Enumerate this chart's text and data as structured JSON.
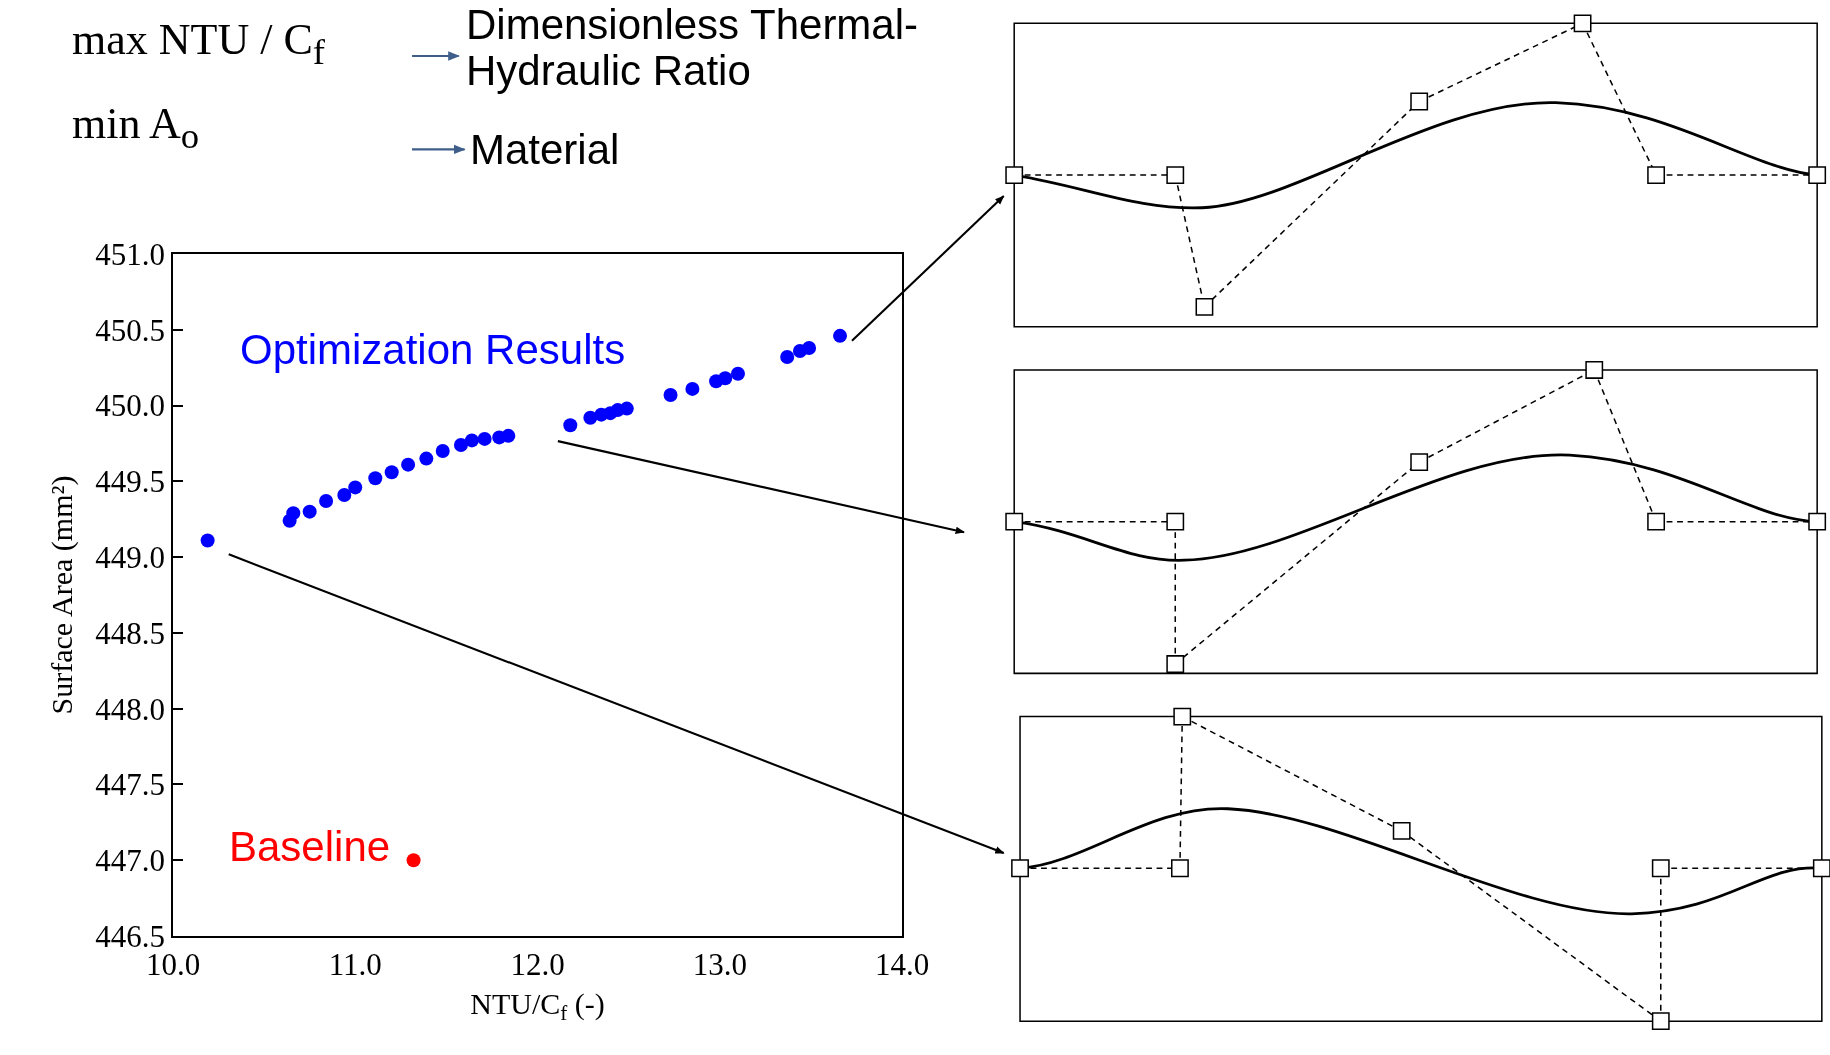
{
  "chart_data": {
    "type": "scatter",
    "xlabel": "NTU/C$_{f}$ (-)",
    "ylabel": "Surface Area (mm²)",
    "xlim": [
      10,
      14
    ],
    "xticks": [
      {
        "value": 10,
        "label": "10.0"
      },
      {
        "value": 11,
        "label": "11.0"
      },
      {
        "value": 12,
        "label": "12.0"
      },
      {
        "value": 13,
        "label": "13.0"
      },
      {
        "value": 14,
        "label": "14.0"
      }
    ],
    "ylim": [
      446.5,
      451
    ],
    "yticks": [
      446.5,
      {
        "value": 447,
        "label": "447.0"
      },
      447.5,
      {
        "value": 448,
        "label": "448.0"
      },
      448.5,
      {
        "value": 449,
        "label": "449.0"
      },
      449.5,
      {
        "value": 450,
        "label": "450.0"
      },
      450.5,
      {
        "value": 451,
        "label": "451.0"
      }
    ],
    "grid": false,
    "legend": false,
    "marker": "circle",
    "series": [
      {
        "name": "Optimization Results",
        "color": "#0000ff",
        "x": [
          10.19,
          10.64,
          10.66,
          10.75,
          10.84,
          10.94,
          11.0,
          11.11,
          11.2,
          11.29,
          11.39,
          11.48,
          11.58,
          11.64,
          11.71,
          11.79,
          11.84,
          12.16,
          12.18,
          12.29,
          12.35,
          12.4,
          12.44,
          12.49,
          12.73,
          12.85,
          12.98,
          13.03,
          13.1,
          13.37,
          13.44,
          13.49,
          13.65,
          13.66
        ],
        "values": [
          449.11,
          449.24,
          449.29,
          449.3,
          449.37,
          449.41,
          449.46,
          449.52,
          449.56,
          449.61,
          449.65,
          449.7,
          449.74,
          449.77,
          449.78,
          449.79,
          449.8,
          null,
          449.87,
          449.92,
          449.94,
          449.95,
          449.97,
          449.98,
          450.07,
          450.11,
          450.16,
          450.18,
          450.21,
          450.32,
          450.36,
          450.38,
          null,
          450.46
        ]
      },
      {
        "name": "Baseline",
        "color": "#ff0000",
        "x": [
          11.32
        ],
        "values": [
          447.0
        ]
      }
    ],
    "annotations": [
      "max NTU / C$_{f}$",
      "Dimensionless Thermal-Hydraulic Ratio",
      "min A$_{o}$",
      "Material"
    ]
  }
}
